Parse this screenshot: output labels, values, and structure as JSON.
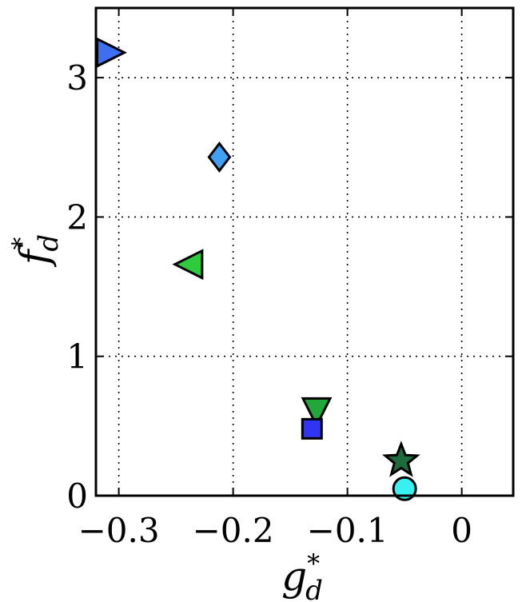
{
  "chart_data": {
    "type": "scatter",
    "xlabel": {
      "base": "g",
      "sup": "*",
      "sub": "d"
    },
    "ylabel": {
      "base": "f",
      "sup": "*",
      "sub": "d"
    },
    "xlim": [
      -0.32,
      0.045
    ],
    "ylim": [
      0,
      3.5
    ],
    "xticks": [
      -0.3,
      -0.2,
      -0.1,
      0
    ],
    "xtick_labels": [
      "−0.3",
      "−0.2",
      "−0.1",
      "0"
    ],
    "yticks": [
      0,
      1,
      2,
      3
    ],
    "ytick_labels": [
      "0",
      "1",
      "2",
      "3"
    ],
    "grid": true,
    "grid_style": "dotted",
    "points": [
      {
        "x": -0.307,
        "y": 3.18,
        "marker": "triangle-right",
        "color": "#3d6ff0"
      },
      {
        "x": -0.212,
        "y": 2.43,
        "marker": "diamond",
        "color": "#3fa0f5"
      },
      {
        "x": -0.239,
        "y": 1.66,
        "marker": "triangle-left",
        "color": "#2ecc3c"
      },
      {
        "x": -0.127,
        "y": 0.6,
        "marker": "triangle-down",
        "color": "#22a83a"
      },
      {
        "x": -0.131,
        "y": 0.48,
        "marker": "square",
        "color": "#2f35f0"
      },
      {
        "x": -0.053,
        "y": 0.25,
        "marker": "star",
        "color": "#1e6b3c"
      },
      {
        "x": -0.05,
        "y": 0.05,
        "marker": "circle",
        "color": "#38f0f0"
      }
    ]
  }
}
